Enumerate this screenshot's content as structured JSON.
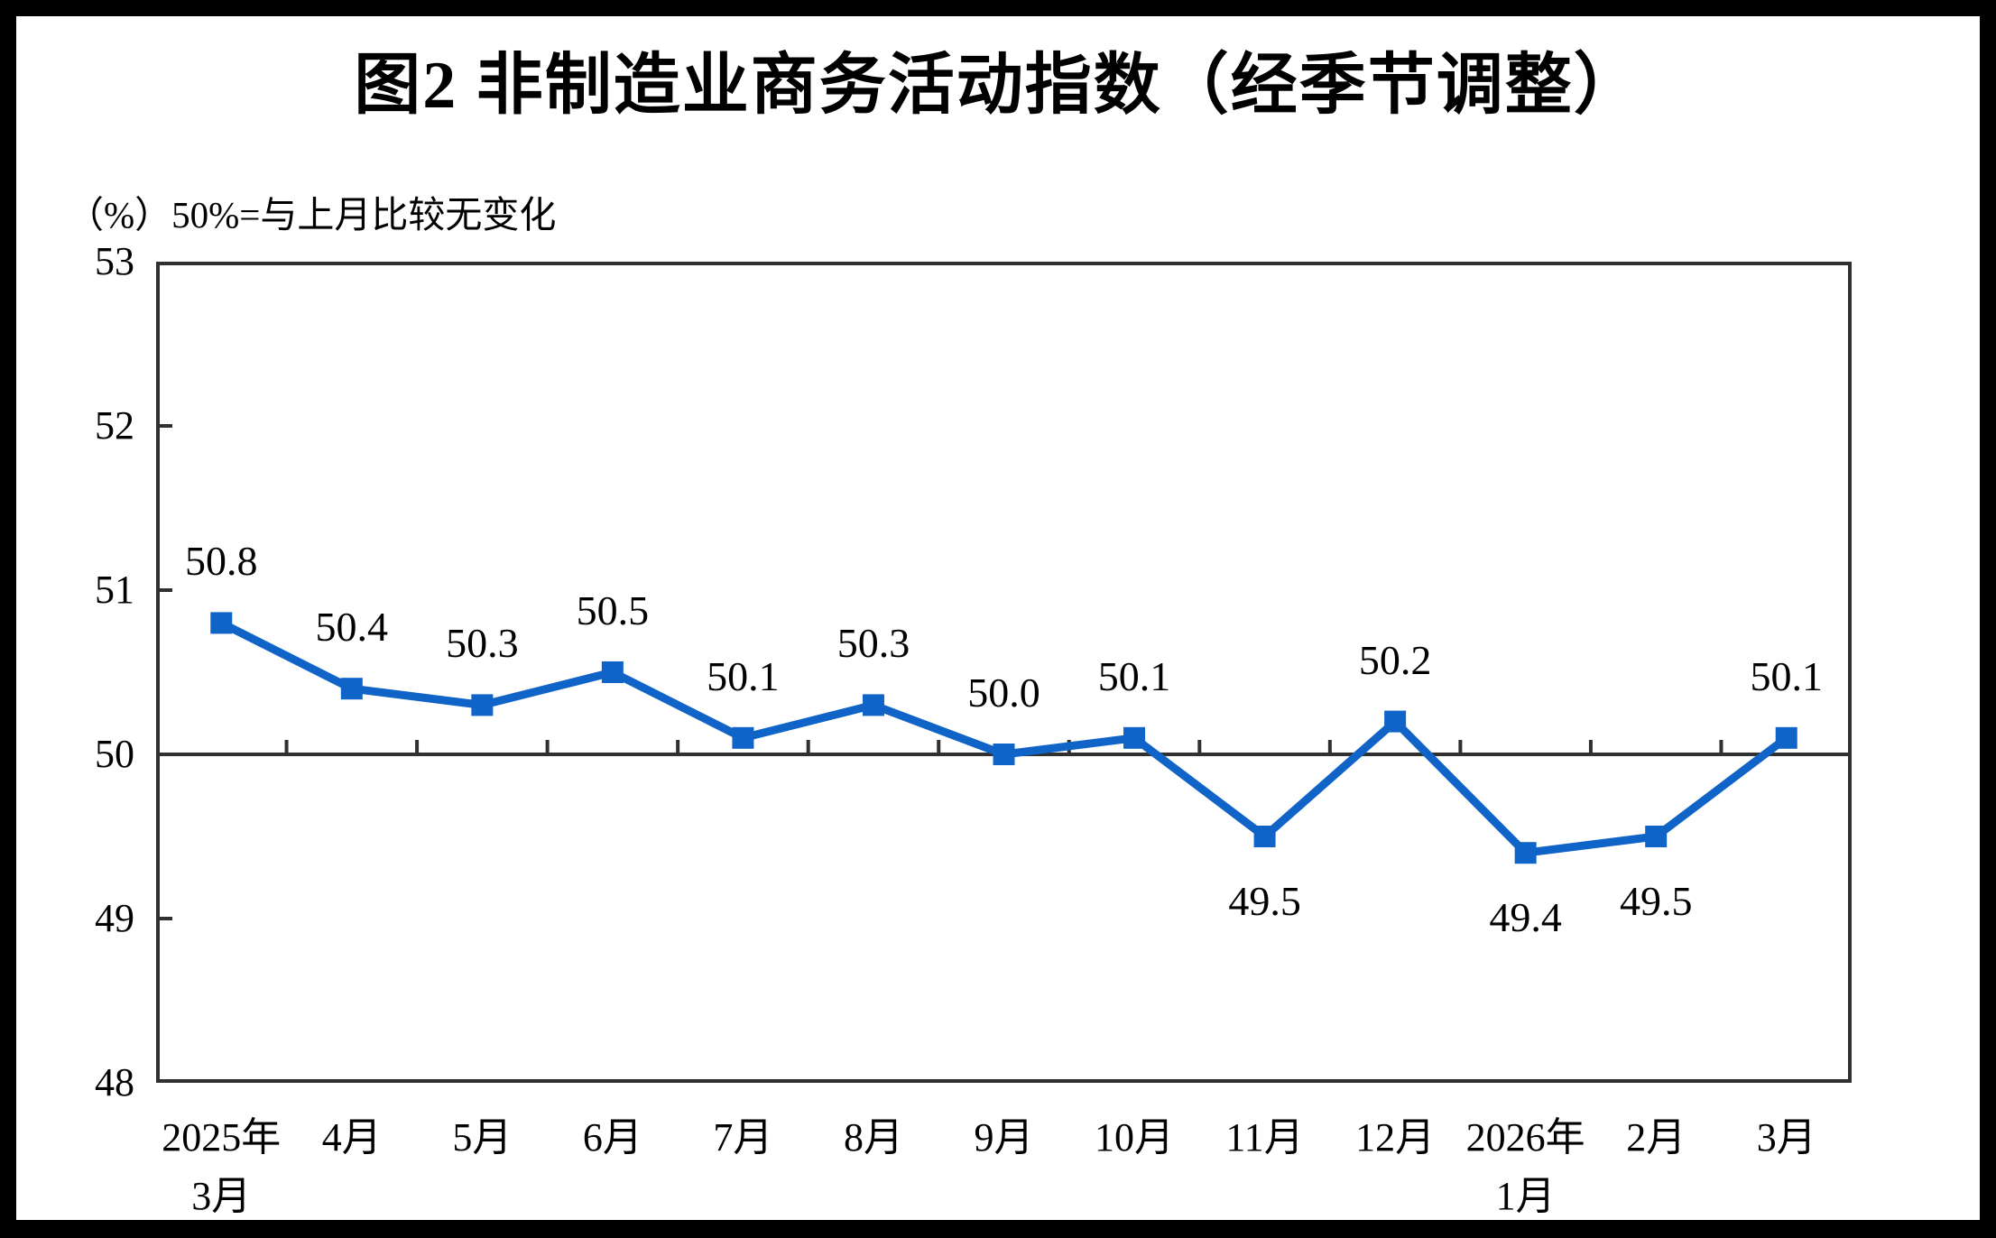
{
  "chart_data": {
    "type": "line",
    "title": "图2  非制造业商务活动指数（经季节调整）",
    "unit_note": "（%）50%=与上月比较无变化",
    "categories": [
      [
        "2025年",
        "3月"
      ],
      [
        "4月"
      ],
      [
        "5月"
      ],
      [
        "6月"
      ],
      [
        "7月"
      ],
      [
        "8月"
      ],
      [
        "9月"
      ],
      [
        "10月"
      ],
      [
        "11月"
      ],
      [
        "12月"
      ],
      [
        "2026年",
        "1月"
      ],
      [
        "2月"
      ],
      [
        "3月"
      ]
    ],
    "values": [
      50.8,
      50.4,
      50.3,
      50.5,
      50.1,
      50.3,
      50.0,
      50.1,
      49.5,
      50.2,
      49.4,
      49.5,
      50.1
    ],
    "value_labels": [
      "50.8",
      "50.4",
      "50.3",
      "50.5",
      "50.1",
      "50.3",
      "50.0",
      "50.1",
      "49.5",
      "50.2",
      "49.4",
      "49.5",
      "50.1"
    ],
    "ylim": [
      48,
      53
    ],
    "yticks": [
      48,
      49,
      50,
      51,
      52,
      53
    ],
    "baseline": 50,
    "grid": "none",
    "legend": "none",
    "label_position_rule": "above baseline values labeled above point, below-baseline values labeled below point",
    "colors": {
      "line": "#1064C8",
      "marker": "#1064C8",
      "axis": "#303030",
      "text": "#000000",
      "frame": "#000000",
      "background": "#FFFFFF"
    }
  }
}
